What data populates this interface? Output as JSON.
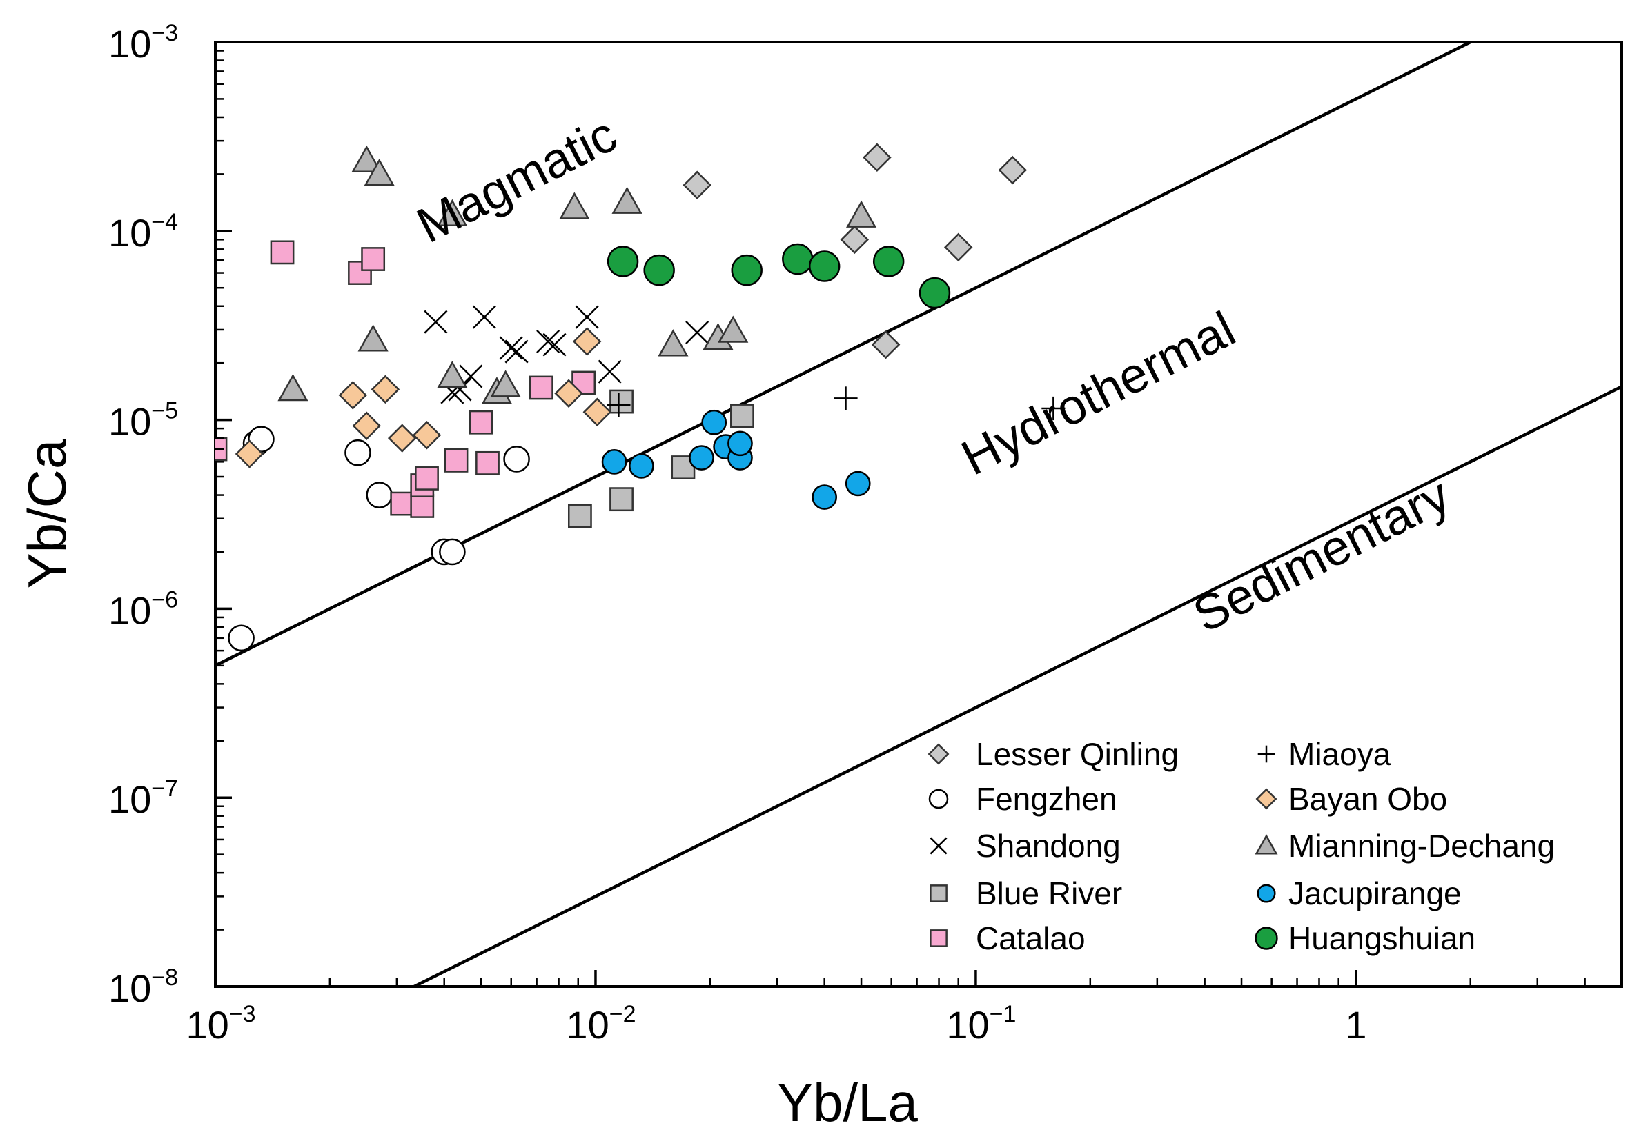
{
  "chart_data": {
    "type": "scatter",
    "x_scale": "log",
    "y_scale": "log",
    "xlim": [
      0.001,
      5
    ],
    "ylim": [
      1e-08,
      0.001
    ],
    "xlabel": "Yb/La",
    "ylabel": "Yb/Ca",
    "x_ticks": [
      {
        "value": 0.001,
        "base": "10",
        "exp": "−3"
      },
      {
        "value": 0.01,
        "base": "10",
        "exp": "−2"
      },
      {
        "value": 0.1,
        "base": "10",
        "exp": "−1"
      },
      {
        "value": 1,
        "base": "1",
        "exp": ""
      }
    ],
    "y_ticks": [
      {
        "value": 1e-08,
        "base": "10",
        "exp": "−8"
      },
      {
        "value": 1e-07,
        "base": "10",
        "exp": "−7"
      },
      {
        "value": 1e-06,
        "base": "10",
        "exp": "−6"
      },
      {
        "value": 1e-05,
        "base": "10",
        "exp": "−5"
      },
      {
        "value": 0.0001,
        "base": "10",
        "exp": "−4"
      },
      {
        "value": 0.001,
        "base": "10",
        "exp": "−3"
      }
    ],
    "grid": false,
    "legend_position": "bottom-right",
    "boundaries": [
      {
        "name": "magmatic-hydrothermal",
        "x0": 0.001,
        "y0": 5e-07,
        "slope": 1
      },
      {
        "name": "hydrothermal-sedimentary",
        "x0": 0.001,
        "y0": 3e-09,
        "slope": 1
      }
    ],
    "regions": [
      {
        "label": "Magmatic",
        "x": 0.0065,
        "y": 0.000155,
        "angle": -27
      },
      {
        "label": "Hydrothermal",
        "x": 0.22,
        "y": 1.15e-05,
        "angle": -27
      },
      {
        "label": "Sedimentary",
        "x": 0.85,
        "y": 1.6e-06,
        "angle": -27
      }
    ],
    "series": [
      {
        "name": "Lesser Qinling",
        "marker": "diamond",
        "color": "#c8c8c8",
        "points": [
          [
            0.0185,
            0.000175
          ],
          [
            0.055,
            0.000245
          ],
          [
            0.125,
            0.00021
          ],
          [
            0.048,
            9e-05
          ],
          [
            0.09,
            8.2e-05
          ],
          [
            0.058,
            2.5e-05
          ]
        ]
      },
      {
        "name": "Fengzhen",
        "marker": "circle-open",
        "color": "#ffffff",
        "points": [
          [
            0.00128,
            7.5e-06
          ],
          [
            0.00132,
            7.9e-06
          ],
          [
            0.00237,
            6.7e-06
          ],
          [
            0.0027,
            4e-06
          ],
          [
            0.004,
            2e-06
          ],
          [
            0.0042,
            2e-06
          ],
          [
            0.00117,
            7e-07
          ],
          [
            0.0062,
            6.2e-06
          ]
        ]
      },
      {
        "name": "Shandong",
        "marker": "x",
        "color": "#000000",
        "points": [
          [
            0.0038,
            3.3e-05
          ],
          [
            0.0051,
            3.5e-05
          ],
          [
            0.006,
            2.4e-05
          ],
          [
            0.0062,
            2.3e-05
          ],
          [
            0.0075,
            2.6e-05
          ],
          [
            0.0078,
            2.5e-05
          ],
          [
            0.0095,
            3.5e-05
          ],
          [
            0.0109,
            1.8e-05
          ],
          [
            0.0185,
            2.9e-05
          ],
          [
            0.0044,
            1.45e-05
          ],
          [
            0.0047,
            1.7e-05
          ],
          [
            0.0042,
            1.4e-05
          ]
        ]
      },
      {
        "name": "Blue River",
        "marker": "square",
        "color": "#bebebe",
        "points": [
          [
            0.0117,
            1.25e-05
          ],
          [
            0.0117,
            3.8e-06
          ],
          [
            0.0091,
            3.1e-06
          ],
          [
            0.017,
            5.6e-06
          ],
          [
            0.0243,
            1.05e-05
          ]
        ]
      },
      {
        "name": "Catalao",
        "marker": "square",
        "color": "#f7a8d0",
        "points": [
          [
            0.001,
            7e-06
          ],
          [
            0.0015,
            7.7e-05
          ],
          [
            0.0024,
            6e-05
          ],
          [
            0.0026,
            7.1e-05
          ],
          [
            0.0031,
            3.6e-06
          ],
          [
            0.0035,
            3.5e-06
          ],
          [
            0.0035,
            4.5e-06
          ],
          [
            0.0036,
            4.9e-06
          ],
          [
            0.0043,
            6.1e-06
          ],
          [
            0.005,
            9.7e-06
          ],
          [
            0.0052,
            5.9e-06
          ],
          [
            0.0072,
            1.48e-05
          ],
          [
            0.0093,
            1.57e-05
          ]
        ]
      },
      {
        "name": "Miaoya",
        "marker": "plus",
        "color": "#000000",
        "points": [
          [
            0.0455,
            1.3e-05
          ],
          [
            0.16,
            1.15e-05
          ],
          [
            0.0115,
            1.2e-05
          ]
        ]
      },
      {
        "name": "Bayan Obo",
        "marker": "diamond",
        "color": "#f7c899",
        "points": [
          [
            0.00123,
            6.6e-06
          ],
          [
            0.0023,
            1.35e-05
          ],
          [
            0.0025,
            9.3e-06
          ],
          [
            0.0028,
            1.45e-05
          ],
          [
            0.0031,
            8e-06
          ],
          [
            0.0036,
            8.3e-06
          ],
          [
            0.0085,
            1.38e-05
          ],
          [
            0.0095,
            2.6e-05
          ],
          [
            0.0101,
            1.1e-05
          ]
        ]
      },
      {
        "name": "Mianning-Dechang",
        "marker": "triangle",
        "color": "#b4b4b4",
        "points": [
          [
            0.0025,
            0.000235
          ],
          [
            0.0027,
            0.0002
          ],
          [
            0.0042,
            0.000122
          ],
          [
            0.0088,
            0.000133
          ],
          [
            0.0121,
            0.000142
          ],
          [
            0.0016,
            1.45e-05
          ],
          [
            0.0026,
            2.65e-05
          ],
          [
            0.0042,
            1.7e-05
          ],
          [
            0.0055,
            1.4e-05
          ],
          [
            0.0058,
            1.52e-05
          ],
          [
            0.016,
            2.5e-05
          ],
          [
            0.021,
            2.7e-05
          ],
          [
            0.023,
            2.95e-05
          ],
          [
            0.05,
            0.00012
          ]
        ]
      },
      {
        "name": "Jacupirange",
        "marker": "circle",
        "color": "#12a6e8",
        "points": [
          [
            0.0112,
            6e-06
          ],
          [
            0.0132,
            5.7e-06
          ],
          [
            0.019,
            6.3e-06
          ],
          [
            0.0205,
            9.7e-06
          ],
          [
            0.022,
            7.2e-06
          ],
          [
            0.024,
            6.3e-06
          ],
          [
            0.024,
            7.5e-06
          ],
          [
            0.04,
            3.9e-06
          ],
          [
            0.049,
            4.6e-06
          ]
        ]
      },
      {
        "name": "Huangshuian",
        "marker": "circle",
        "color": "#1a9e40",
        "points": [
          [
            0.0118,
            6.9e-05
          ],
          [
            0.0147,
            6.2e-05
          ],
          [
            0.025,
            6.2e-05
          ],
          [
            0.034,
            7.1e-05
          ],
          [
            0.04,
            6.5e-05
          ],
          [
            0.059,
            6.9e-05
          ],
          [
            0.078,
            4.7e-05
          ]
        ]
      }
    ]
  }
}
